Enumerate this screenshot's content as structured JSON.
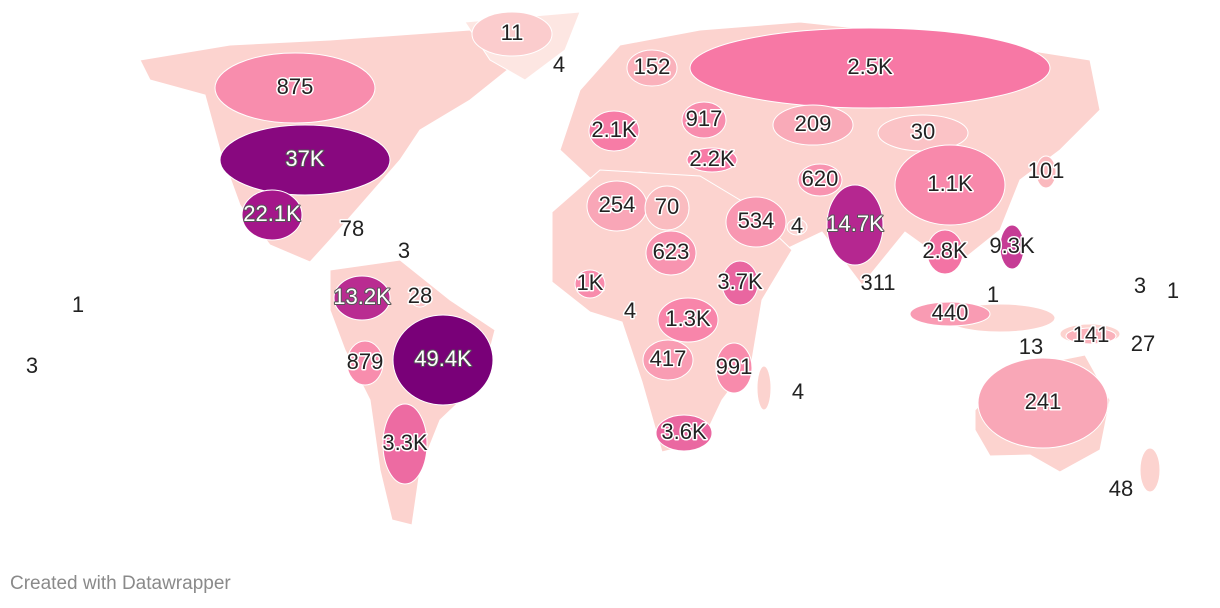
{
  "map": {
    "labels": [
      {
        "label": "11",
        "value": 11
      },
      {
        "label": "4",
        "value": 4
      },
      {
        "label": "152",
        "value": 152
      },
      {
        "label": "2.5K",
        "value": 2500
      },
      {
        "label": "875",
        "value": 875
      },
      {
        "label": "2.1K",
        "value": 2100
      },
      {
        "label": "917",
        "value": 917
      },
      {
        "label": "209",
        "value": 209
      },
      {
        "label": "30",
        "value": 30
      },
      {
        "label": "37K",
        "value": 37000
      },
      {
        "label": "2.2K",
        "value": 2200
      },
      {
        "label": "620",
        "value": 620
      },
      {
        "label": "1.1K",
        "value": 1100
      },
      {
        "label": "101",
        "value": 101
      },
      {
        "label": "22.1K",
        "value": 22100
      },
      {
        "label": "254",
        "value": 254
      },
      {
        "label": "70",
        "value": 70
      },
      {
        "label": "534",
        "value": 534
      },
      {
        "label": "4",
        "value": 4
      },
      {
        "label": "14.7K",
        "value": 14700
      },
      {
        "label": "78",
        "value": 78
      },
      {
        "label": "3",
        "value": 3
      },
      {
        "label": "623",
        "value": 623
      },
      {
        "label": "2.8K",
        "value": 2800
      },
      {
        "label": "9.3K",
        "value": 9300
      },
      {
        "label": "13.2K",
        "value": 13200
      },
      {
        "label": "28",
        "value": 28
      },
      {
        "label": "1K",
        "value": 1000
      },
      {
        "label": "3.7K",
        "value": 3700
      },
      {
        "label": "311",
        "value": 311
      },
      {
        "label": "1",
        "value": 1
      },
      {
        "label": "4",
        "value": 4
      },
      {
        "label": "1.3K",
        "value": 1300
      },
      {
        "label": "1",
        "value": 1
      },
      {
        "label": "440",
        "value": 440
      },
      {
        "label": "3",
        "value": 3
      },
      {
        "label": "1",
        "value": 1
      },
      {
        "label": "13",
        "value": 13
      },
      {
        "label": "141",
        "value": 141
      },
      {
        "label": "27",
        "value": 27
      },
      {
        "label": "3",
        "value": 3
      },
      {
        "label": "879",
        "value": 879
      },
      {
        "label": "49.4K",
        "value": 49400
      },
      {
        "label": "417",
        "value": 417
      },
      {
        "label": "991",
        "value": 991
      },
      {
        "label": "4",
        "value": 4
      },
      {
        "label": "241",
        "value": 241
      },
      {
        "label": "3.3K",
        "value": 3300
      },
      {
        "label": "3.6K",
        "value": 3600
      },
      {
        "label": "48",
        "value": 48
      }
    ],
    "footer": "Created with Datawrapper"
  }
}
